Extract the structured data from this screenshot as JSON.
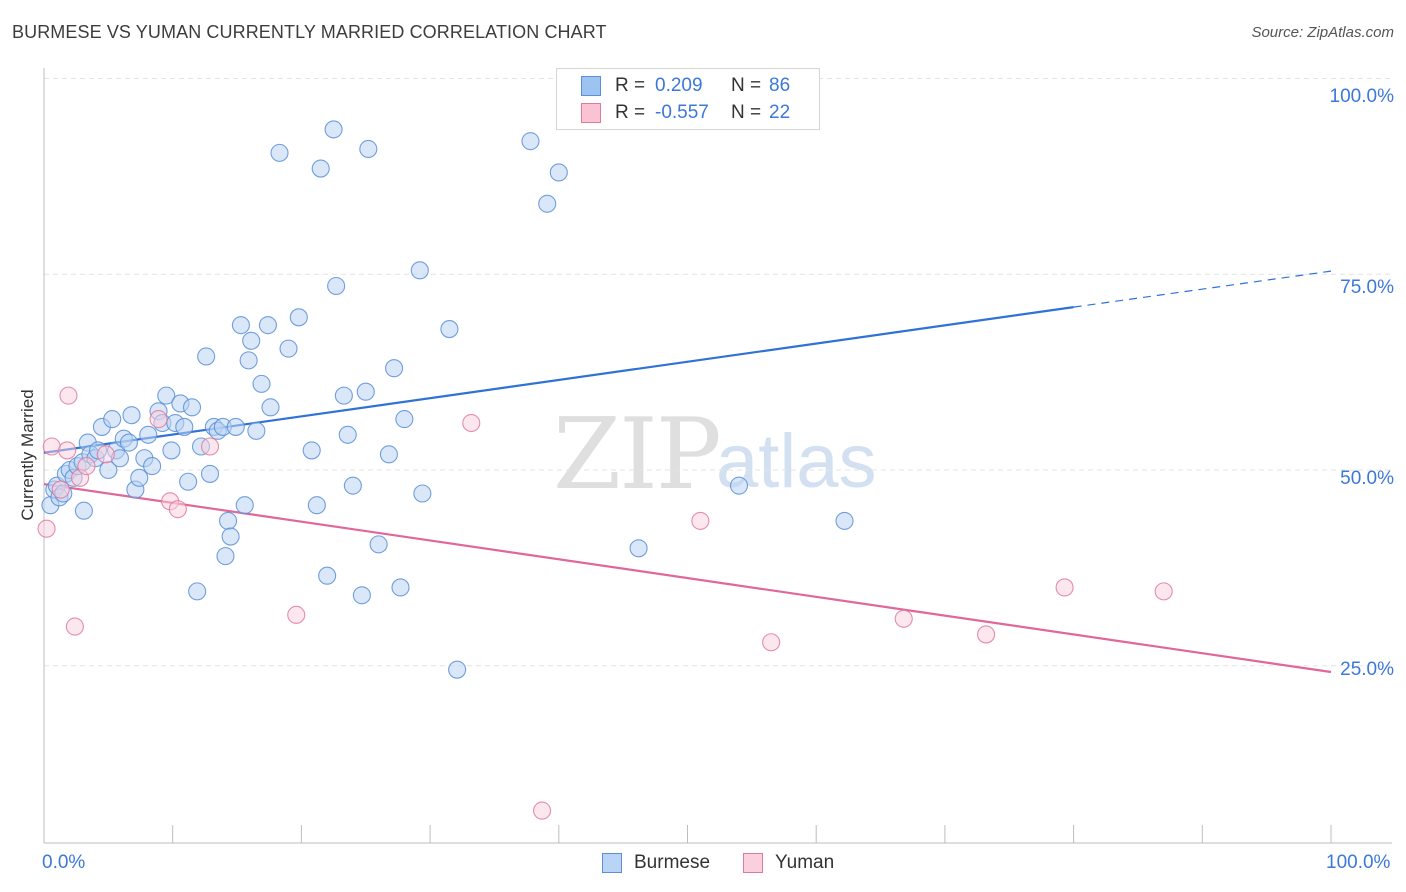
{
  "title": "BURMESE VS YUMAN CURRENTLY MARRIED CORRELATION CHART",
  "source": "Source: ZipAtlas.com",
  "watermark": {
    "zip": "ZIP",
    "atlas": "atlas"
  },
  "stats": [
    {
      "r_label": "R =",
      "r_value": "0.209",
      "n_label": "N =",
      "n_value": "86",
      "color": "#9dc3f0",
      "border": "#5b8fd6"
    },
    {
      "r_label": "R =",
      "r_value": "-0.557",
      "n_label": "N =",
      "n_value": "22",
      "color": "#f9c3d3",
      "border": "#e07a9b"
    }
  ],
  "legend": [
    {
      "name": "Burmese",
      "color": "#b9d4f4",
      "border": "#5b8fd6"
    },
    {
      "name": "Yuman",
      "color": "#fbd0de",
      "border": "#e07a9b"
    }
  ],
  "chart_data": {
    "type": "scatter",
    "title": "BURMESE VS YUMAN CURRENTLY MARRIED CORRELATION CHART",
    "xlabel": "",
    "ylabel": "Currently Married",
    "xlim": [
      0,
      100
    ],
    "ylim": [
      0,
      100
    ],
    "x_tick_labels": [
      "0.0%",
      "100.0%"
    ],
    "y_ticks": [
      25,
      50,
      75,
      100
    ],
    "y_tick_labels": [
      "25.0%",
      "50.0%",
      "75.0%",
      "100.0%"
    ],
    "grid": true,
    "series": [
      {
        "name": "Burmese",
        "color": "#5b8fd6",
        "fill": "#b9d4f4",
        "r": 0.209,
        "n": 86,
        "trend": {
          "x0": 0,
          "y0": 52.2,
          "x1": 80,
          "y1": 70.8,
          "x_dash_end": 100,
          "y_dash_end": 75.4
        },
        "points": [
          [
            0.5,
            45.5
          ],
          [
            0.8,
            47.5
          ],
          [
            1.0,
            48.0
          ],
          [
            1.2,
            46.5
          ],
          [
            1.5,
            47.0
          ],
          [
            1.7,
            49.5
          ],
          [
            2.0,
            50.0
          ],
          [
            2.3,
            49.0
          ],
          [
            2.6,
            50.5
          ],
          [
            3.0,
            51.0
          ],
          [
            3.1,
            44.8
          ],
          [
            3.4,
            53.5
          ],
          [
            3.6,
            52.0
          ],
          [
            4.0,
            51.5
          ],
          [
            4.2,
            52.5
          ],
          [
            4.5,
            55.5
          ],
          [
            5.0,
            50.0
          ],
          [
            5.3,
            56.5
          ],
          [
            5.6,
            52.5
          ],
          [
            5.9,
            51.5
          ],
          [
            6.2,
            54.0
          ],
          [
            6.6,
            53.5
          ],
          [
            6.8,
            57.0
          ],
          [
            7.1,
            47.5
          ],
          [
            7.4,
            49.0
          ],
          [
            7.8,
            51.5
          ],
          [
            8.1,
            54.5
          ],
          [
            8.4,
            50.5
          ],
          [
            8.9,
            57.5
          ],
          [
            9.2,
            56.0
          ],
          [
            9.5,
            59.5
          ],
          [
            9.9,
            52.5
          ],
          [
            10.2,
            56.0
          ],
          [
            10.6,
            58.5
          ],
          [
            10.9,
            55.5
          ],
          [
            11.2,
            48.5
          ],
          [
            11.5,
            58.0
          ],
          [
            11.9,
            34.5
          ],
          [
            12.2,
            53.0
          ],
          [
            12.6,
            64.5
          ],
          [
            12.9,
            49.5
          ],
          [
            13.2,
            55.5
          ],
          [
            13.5,
            55.0
          ],
          [
            13.9,
            55.5
          ],
          [
            14.1,
            39.0
          ],
          [
            14.3,
            43.5
          ],
          [
            14.5,
            41.5
          ],
          [
            14.9,
            55.5
          ],
          [
            15.3,
            68.5
          ],
          [
            15.6,
            45.5
          ],
          [
            15.9,
            64.0
          ],
          [
            16.1,
            66.5
          ],
          [
            16.5,
            55.0
          ],
          [
            16.9,
            61.0
          ],
          [
            17.4,
            68.5
          ],
          [
            17.6,
            58.0
          ],
          [
            18.3,
            90.5
          ],
          [
            19.0,
            65.5
          ],
          [
            19.8,
            69.5
          ],
          [
            20.8,
            52.5
          ],
          [
            21.2,
            45.5
          ],
          [
            21.5,
            88.5
          ],
          [
            22.0,
            36.5
          ],
          [
            22.5,
            93.5
          ],
          [
            22.7,
            73.5
          ],
          [
            23.3,
            59.5
          ],
          [
            23.6,
            54.5
          ],
          [
            24.0,
            48.0
          ],
          [
            24.7,
            34.0
          ],
          [
            25.0,
            60.0
          ],
          [
            25.2,
            91.0
          ],
          [
            26.0,
            40.5
          ],
          [
            26.8,
            52.0
          ],
          [
            27.2,
            63.0
          ],
          [
            27.7,
            35.0
          ],
          [
            28.0,
            56.5
          ],
          [
            29.2,
            75.5
          ],
          [
            29.4,
            47.0
          ],
          [
            31.5,
            68.0
          ],
          [
            32.1,
            24.5
          ],
          [
            37.8,
            92.0
          ],
          [
            39.1,
            84.0
          ],
          [
            40.0,
            88.0
          ],
          [
            46.2,
            40.0
          ],
          [
            54.0,
            48.0
          ],
          [
            62.2,
            43.5
          ]
        ]
      },
      {
        "name": "Yuman",
        "color": "#e07a9b",
        "fill": "#fbd0de",
        "r": -0.557,
        "n": 22,
        "trend": {
          "x0": 0,
          "y0": 48.2,
          "x1": 100,
          "y1": 24.2
        },
        "points": [
          [
            0.2,
            42.5
          ],
          [
            0.6,
            53.0
          ],
          [
            1.3,
            47.5
          ],
          [
            1.8,
            52.5
          ],
          [
            1.9,
            59.5
          ],
          [
            2.4,
            30.0
          ],
          [
            2.8,
            49.0
          ],
          [
            3.3,
            50.5
          ],
          [
            4.8,
            52.0
          ],
          [
            8.9,
            56.5
          ],
          [
            9.8,
            46.0
          ],
          [
            10.4,
            45.0
          ],
          [
            12.9,
            53.0
          ],
          [
            19.6,
            31.5
          ],
          [
            33.2,
            56.0
          ],
          [
            38.7,
            6.5
          ],
          [
            51.0,
            43.5
          ],
          [
            56.5,
            28.0
          ],
          [
            66.8,
            31.0
          ],
          [
            73.2,
            29.0
          ],
          [
            79.3,
            35.0
          ],
          [
            87.0,
            34.5
          ]
        ]
      }
    ]
  }
}
